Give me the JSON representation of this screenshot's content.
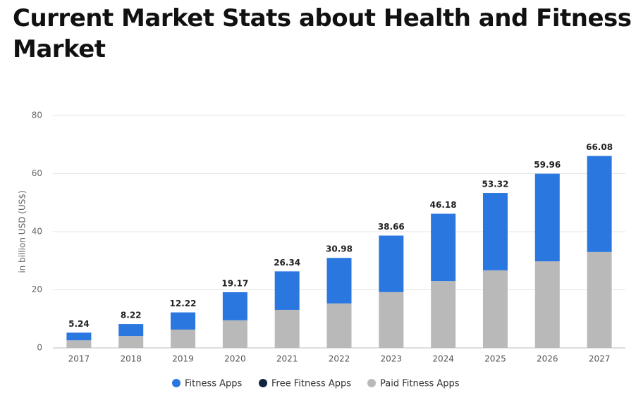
{
  "chart_data": {
    "type": "stacked-bar",
    "title": "Current Market Stats about Health and Fitness Market",
    "y_label": "in billion USD (US$)",
    "categories": [
      "2017",
      "2018",
      "2019",
      "2020",
      "2021",
      "2022",
      "2023",
      "2024",
      "2025",
      "2026",
      "2027"
    ],
    "series": [
      {
        "name": "Fitness Apps",
        "color": "#2a77e0",
        "values": [
          2.64,
          4.12,
          5.92,
          9.67,
          13.24,
          15.68,
          19.46,
          23.18,
          26.62,
          30.16,
          33.08
        ]
      },
      {
        "name": "Free Fitness Apps",
        "color": "#0f2440",
        "values": [
          null,
          null,
          null,
          null,
          null,
          null,
          null,
          null,
          null,
          null,
          null
        ]
      },
      {
        "name": "Paid Fitness Apps",
        "color": "#b9b9b9",
        "values": [
          2.6,
          4.1,
          6.3,
          9.5,
          13.1,
          15.3,
          19.2,
          23.0,
          26.7,
          29.8,
          33.0
        ]
      }
    ],
    "stack_order": [
      2,
      0,
      1
    ],
    "totals": [
      "5.24",
      "8.22",
      "12.22",
      "19.17",
      "26.34",
      "30.98",
      "38.66",
      "46.18",
      "53.32",
      "59.96",
      "66.08"
    ],
    "ylim": [
      0,
      80
    ],
    "yticks": [
      0,
      20,
      40,
      60,
      80
    ],
    "grid": true
  }
}
